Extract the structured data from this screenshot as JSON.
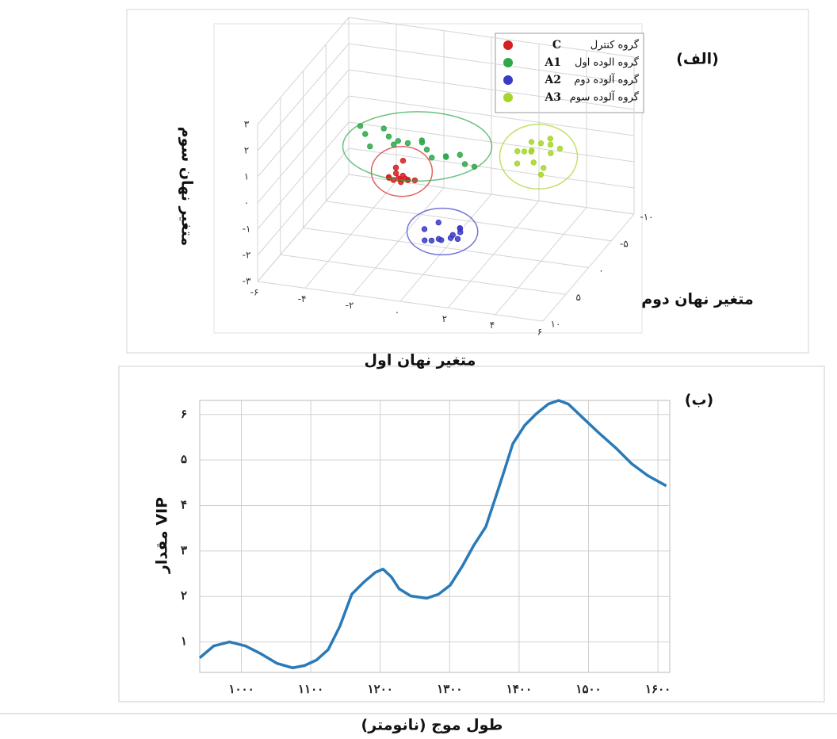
{
  "chart_data": [
    {
      "type": "scatter3d",
      "annotation": "(الف)",
      "xlabel": "متغیر نهان اول",
      "ylabel": "متغیر نهان دوم",
      "zlabel": "متغیر نهان سوم",
      "xlim": [
        -6,
        6
      ],
      "ylim": [
        -10,
        10
      ],
      "zlim": [
        -3,
        3
      ],
      "xticks": [
        {
          "value": -6,
          "label": "-۶"
        },
        {
          "value": -4,
          "label": "-۴"
        },
        {
          "value": -2,
          "label": "-۲"
        },
        {
          "value": 0,
          "label": "۰"
        },
        {
          "value": 2,
          "label": "۲"
        },
        {
          "value": 4,
          "label": "۴"
        },
        {
          "value": 6,
          "label": "۶"
        }
      ],
      "yticks": [
        {
          "value": -10,
          "label": "-۱۰"
        },
        {
          "value": -5,
          "label": "-۵"
        },
        {
          "value": 0,
          "label": "۰"
        },
        {
          "value": 5,
          "label": "۵"
        },
        {
          "value": 10,
          "label": "۱۰"
        }
      ],
      "zticks": [
        {
          "value": -3,
          "label": "-۳"
        },
        {
          "value": -2,
          "label": "-۲"
        },
        {
          "value": -1,
          "label": "-۱"
        },
        {
          "value": 0,
          "label": "۰"
        },
        {
          "value": 1,
          "label": "۱"
        },
        {
          "value": 2,
          "label": "۲"
        },
        {
          "value": 3,
          "label": "۳"
        }
      ],
      "grid": true,
      "legend": "top-right",
      "series": [
        {
          "name": "C",
          "label": "گروه کنترل",
          "color": "#d42020",
          "x": [
            -2.4,
            -2.2,
            -2.0,
            -1.8,
            -1.6,
            -1.4,
            -2.3,
            -2.0,
            -1.7,
            -1.9,
            -2.1,
            -1.5,
            -1.8,
            -2.0
          ],
          "y": [
            0,
            1,
            -1,
            0.5,
            0,
            -0.5,
            -0.5,
            0.5,
            1,
            -1,
            0,
            0.5,
            0,
            0
          ],
          "z": [
            -0.6,
            -0.4,
            -0.7,
            -0.5,
            -0.6,
            -0.7,
            -0.8,
            -0.3,
            -0.5,
            -0.8,
            -0.2,
            -0.5,
            0.1,
            -0.6
          ]
        },
        {
          "name": "A1",
          "label": "گروه الوده اول",
          "color": "#2ea84a",
          "x": [
            -3.6,
            -3.2,
            -2.8,
            -2.4,
            -2.0,
            -1.6,
            -1.2,
            -0.8,
            -0.4,
            0,
            0.4,
            0.8,
            1.2,
            -3.0,
            -2.2,
            -1.0,
            0.2
          ],
          "y": [
            0,
            1,
            -1,
            0,
            1,
            0,
            -1,
            0,
            1,
            0,
            -1,
            0,
            0,
            1,
            -1,
            0,
            1
          ],
          "z": [
            1.2,
            1.15,
            1.0,
            0.95,
            0.9,
            0.8,
            0.75,
            0.65,
            0.6,
            0.5,
            0.4,
            0.3,
            0.25,
            0.7,
            0.6,
            0.9,
            0.7
          ]
        },
        {
          "name": "A2",
          "label": "گروه آلوده دوم",
          "color": "#3a3ac8",
          "x": [
            -0.9,
            -0.7,
            -0.5,
            -0.3,
            0,
            0.2,
            0.4,
            0.6,
            0.8,
            -0.6,
            0.1,
            0.5
          ],
          "y": [
            0,
            1,
            -1,
            0,
            1,
            0,
            -1,
            0,
            1,
            0,
            -1,
            0
          ],
          "z": [
            -2.4,
            -2.6,
            -2.3,
            -2.7,
            -2.5,
            -2.6,
            -2.4,
            -2.2,
            -2.1,
            -2.8,
            -2.7,
            -2.6
          ]
        },
        {
          "name": "A3",
          "label": "گروه آلوده سوم",
          "color": "#a6d62a",
          "x": [
            3.0,
            3.2,
            3.4,
            3.6,
            3.8,
            4.0,
            4.2,
            4.4,
            4.6,
            4.8,
            3.5,
            4.0,
            4.3,
            3.3
          ],
          "y": [
            0,
            1,
            -1,
            0,
            1,
            0,
            -1,
            0,
            1,
            0,
            -1,
            0,
            1,
            0
          ],
          "z": [
            0.6,
            1.3,
            0.9,
            1.5,
            1.4,
            1.5,
            1.5,
            1.5,
            1.4,
            1.4,
            0.5,
            0.3,
            0.8,
            1.1
          ]
        }
      ]
    },
    {
      "type": "line",
      "annotation": "(ب)",
      "xlabel": "طول موج (نانومتر)",
      "ylabel": "مقدار VIP",
      "color": "#2a7ab8",
      "x": [
        940,
        960,
        983,
        1006,
        1028,
        1051,
        1074,
        1091,
        1108,
        1125,
        1142,
        1159,
        1176,
        1193,
        1204,
        1216,
        1227,
        1244,
        1267,
        1284,
        1301,
        1318,
        1335,
        1352,
        1369,
        1380,
        1391,
        1408,
        1425,
        1442,
        1457,
        1471,
        1493,
        1516,
        1539,
        1562,
        1585,
        1612
      ],
      "values": [
        0.65,
        0.91,
        1.0,
        0.91,
        0.74,
        0.53,
        0.43,
        0.48,
        0.6,
        0.83,
        1.35,
        2.05,
        2.31,
        2.53,
        2.6,
        2.43,
        2.17,
        2.01,
        1.96,
        2.05,
        2.25,
        2.66,
        3.13,
        3.53,
        4.31,
        4.83,
        5.36,
        5.76,
        6.02,
        6.23,
        6.31,
        6.23,
        5.91,
        5.58,
        5.27,
        4.92,
        4.66,
        4.43
      ],
      "xlim": [
        940,
        1617
      ],
      "ylim": [
        0.33,
        6.31
      ],
      "xticks": [
        {
          "value": 1000,
          "label": "۱۰۰۰"
        },
        {
          "value": 1100,
          "label": "۱۱۰۰"
        },
        {
          "value": 1200,
          "label": "۱۲۰۰"
        },
        {
          "value": 1300,
          "label": "۱۳۰۰"
        },
        {
          "value": 1400,
          "label": "۱۴۰۰"
        },
        {
          "value": 1500,
          "label": "۱۵۰۰"
        },
        {
          "value": 1600,
          "label": "۱۶۰۰"
        }
      ],
      "yticks": [
        {
          "value": 1,
          "label": "۱"
        },
        {
          "value": 2,
          "label": "۲"
        },
        {
          "value": 3,
          "label": "۳"
        },
        {
          "value": 4,
          "label": "۴"
        },
        {
          "value": 5,
          "label": "۵"
        },
        {
          "value": 6,
          "label": "۶"
        }
      ],
      "grid": true
    }
  ]
}
